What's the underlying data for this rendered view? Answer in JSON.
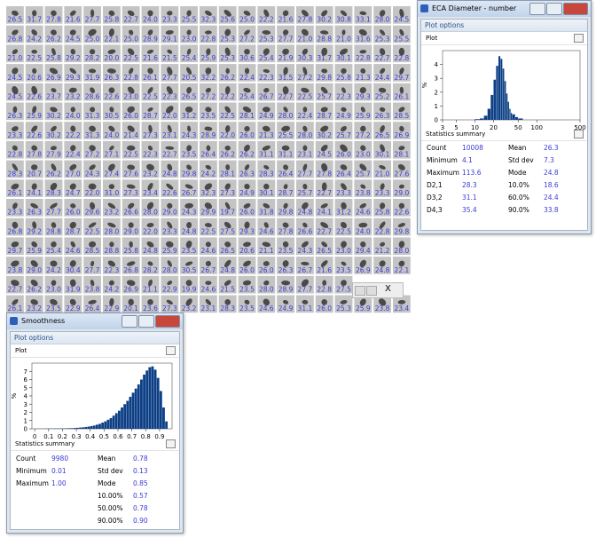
{
  "grid": {
    "rows": [
      [
        "26.5",
        "31.7",
        "27.8",
        "21.6",
        "27.7",
        "25.8",
        "22.7",
        "24.0",
        "23.3",
        "25.5",
        "32.3",
        "25.6",
        "25.0",
        "22.2",
        "21.6",
        "27.8",
        "30.2",
        "30.8",
        "33.1",
        "28.0",
        "24.5"
      ],
      [
        "26.8",
        "24.2",
        "26.2",
        "24.5",
        "25.0",
        "22.1",
        "25.0",
        "28.9",
        "29.1",
        "23.0",
        "22.8",
        "25.3",
        "27.2",
        "25.3",
        "27.7",
        "21.0",
        "28.8",
        "21.0",
        "31.6",
        "25.3",
        "25.5"
      ],
      [
        "21.0",
        "22.5",
        "25.8",
        "29.2",
        "28.2",
        "20.0",
        "22.5",
        "21.6",
        "21.5",
        "25.4",
        "25.9",
        "25.3",
        "30.6",
        "25.4",
        "21.9",
        "30.3",
        "31.7",
        "30.1",
        "22.8",
        "22.7",
        "22.8"
      ],
      [
        "24.5",
        "20.6",
        "26.9",
        "29.3",
        "31.9",
        "26.3",
        "22.8",
        "26.1",
        "27.7",
        "20.5",
        "32.2",
        "26.2",
        "22.4",
        "22.3",
        "31.5",
        "27.2",
        "29.8",
        "25.8",
        "21.3",
        "24.4",
        "29.7"
      ],
      [
        "24.5",
        "22.6",
        "23.7",
        "23.2",
        "28.6",
        "22.6",
        "23.0",
        "22.5",
        "22.3",
        "26.5",
        "27.2",
        "22.2",
        "25.4",
        "26.7",
        "22.7",
        "22.5",
        "25.7",
        "22.3",
        "29.3",
        "25.2",
        "26.1"
      ],
      [
        "26.3",
        "25.9",
        "30.2",
        "24.0",
        "31.3",
        "30.5",
        "26.0",
        "28.7",
        "22.0",
        "31.2",
        "23.5",
        "22.5",
        "28.1",
        "24.9",
        "28.0",
        "22.4",
        "28.7",
        "24.9",
        "25.9",
        "26.3",
        "28.5"
      ],
      [
        "23.3",
        "22.6",
        "30.2",
        "22.2",
        "31.3",
        "24.0",
        "21.4",
        "27.3",
        "23.1",
        "24.3",
        "28.9",
        "22.0",
        "26.0",
        "21.3",
        "25.5",
        "28.0",
        "30.2",
        "25.7",
        "27.2",
        "26.5",
        "26.9"
      ],
      [
        "22.8",
        "27.8",
        "27.9",
        "22.4",
        "27.2",
        "27.1",
        "22.5",
        "22.3",
        "22.7",
        "23.5",
        "26.4",
        "26.2",
        "26.2",
        "31.1",
        "31.1",
        "23.1",
        "24.5",
        "26.0",
        "23.0",
        "30.1",
        "28.1"
      ],
      [
        "28.3",
        "20.7",
        "26.2",
        "27.0",
        "24.3",
        "27.4",
        "27.6",
        "23.2",
        "24.8",
        "29.8",
        "24.2",
        "28.1",
        "26.3",
        "28.3",
        "26.4",
        "27.7",
        "27.8",
        "26.4",
        "25.7",
        "21.0",
        "27.6"
      ],
      [
        "26.1",
        "24.1",
        "28.3",
        "24.7",
        "22.0",
        "31.0",
        "27.3",
        "23.4",
        "22.6",
        "26.7",
        "32.3",
        "27.3",
        "24.9",
        "30.1",
        "28.7",
        "25.7",
        "22.7",
        "23.3",
        "23.8",
        "23.3",
        "29.0"
      ],
      [
        "23.3",
        "26.3",
        "27.7",
        "26.0",
        "29.6",
        "23.2",
        "26.6",
        "28.0",
        "29.0",
        "24.3",
        "29.9",
        "19.7",
        "26.0",
        "31.8",
        "29.8",
        "24.8",
        "24.1",
        "31.2",
        "24.6",
        "25.8",
        "22.6"
      ],
      [
        "26.8",
        "29.2",
        "28.8",
        "28.7",
        "22.5",
        "28.0",
        "29.0",
        "22.0",
        "23.3",
        "24.8",
        "22.5",
        "27.5",
        "29.3",
        "24.6",
        "27.8",
        "26.6",
        "22.7",
        "22.5",
        "24.0",
        "22.8",
        "29.8"
      ],
      [
        "29.7",
        "25.9",
        "25.4",
        "24.6",
        "28.5",
        "28.8",
        "25.8",
        "24.8",
        "25.9",
        "23.5",
        "24.6",
        "26.5",
        "20.6",
        "21.1",
        "23.5",
        "24.3",
        "26.5",
        "23.0",
        "29.4",
        "21.2",
        "28.0"
      ],
      [
        "23.8",
        "29.0",
        "24.2",
        "30.4",
        "27.7",
        "22.3",
        "26.8",
        "28.2",
        "28.0",
        "30.5",
        "26.7",
        "24.8",
        "26.0",
        "26.0",
        "26.3",
        "26.7",
        "21.6",
        "23.5",
        "26.9",
        "24.8",
        "22.1"
      ],
      [
        "22.7",
        "26.2",
        "23.0",
        "31.9",
        "23.8",
        "24.2",
        "26.9",
        "21.1",
        "22.9",
        "19.9",
        "24.6",
        "21.5",
        "23.5",
        "28.0",
        "28.9",
        "27.7",
        "22.8",
        "27.5"
      ],
      [
        "26.1",
        "23.2",
        "23.5",
        "22.9",
        "26.4",
        "22.9",
        "20.1",
        "23.6",
        "27.3",
        "23.2",
        "23.1",
        "28.3",
        "23.5",
        "24.6",
        "24.9",
        "31.1",
        "26.0",
        "25.3",
        "25.9",
        "23.8",
        "23.4"
      ]
    ]
  },
  "nav": {
    "close": "X"
  },
  "eca_window": {
    "title": "ECA Diameter - number",
    "plot_options": "Plot options",
    "plot_label": "Plot",
    "stats_label": "Statistics summary",
    "chart": {
      "type": "histogram",
      "y_label": "%",
      "log_x": true,
      "color": "#0d3f86",
      "bins": [
        10,
        12,
        14,
        16,
        18,
        20,
        22,
        24,
        26,
        28,
        30,
        32,
        34,
        36,
        38,
        40,
        45,
        50,
        60
      ],
      "values": [
        0.05,
        0.1,
        0.3,
        0.8,
        1.8,
        2.9,
        3.9,
        4.6,
        4.4,
        3.7,
        2.8,
        1.9,
        1.3,
        0.8,
        0.5,
        0.4,
        0.2,
        0.1
      ],
      "xlim": [
        3,
        500
      ],
      "xticks": [
        3,
        5,
        10,
        20,
        50,
        100,
        500
      ],
      "ylim": [
        0,
        5
      ],
      "yticks": [
        0,
        1,
        2,
        3,
        4
      ]
    },
    "stats": {
      "left": [
        [
          "Count",
          "10008"
        ],
        [
          "Minimum",
          "4.1"
        ],
        [
          "Maximum",
          "113.6"
        ],
        [
          "D2,1",
          "28.3"
        ],
        [
          "D3,2",
          "31.1"
        ],
        [
          "D4,3",
          "35.4"
        ]
      ],
      "right": [
        [
          "Mean",
          "26.3"
        ],
        [
          "Std dev",
          "7.3"
        ],
        [
          "Mode",
          "24.8"
        ],
        [
          "10.0%",
          "18.6"
        ],
        [
          "60.0%",
          "24.4"
        ],
        [
          "90.0%",
          "33.8"
        ]
      ]
    }
  },
  "smooth_window": {
    "title": "Smoothness",
    "plot_options": "Plot options",
    "plot_label": "Plot",
    "stats_label": "Statistics summary",
    "chart": {
      "type": "histogram",
      "y_label": "%",
      "log_x": false,
      "color": "#0d3f86",
      "bins": [
        0,
        0.02,
        0.04,
        0.06,
        0.08,
        0.1,
        0.12,
        0.14,
        0.16,
        0.18,
        0.2,
        0.22,
        0.24,
        0.26,
        0.28,
        0.3,
        0.32,
        0.34,
        0.36,
        0.38,
        0.4,
        0.42,
        0.44,
        0.46,
        0.48,
        0.5,
        0.52,
        0.54,
        0.56,
        0.58,
        0.6,
        0.62,
        0.64,
        0.66,
        0.68,
        0.7,
        0.72,
        0.74,
        0.76,
        0.78,
        0.8,
        0.82,
        0.84,
        0.86,
        0.88,
        0.9,
        0.92,
        0.94,
        0.96
      ],
      "values": [
        0.02,
        0.02,
        0.02,
        0.02,
        0.03,
        0.03,
        0.03,
        0.04,
        0.04,
        0.05,
        0.05,
        0.06,
        0.07,
        0.08,
        0.1,
        0.12,
        0.15,
        0.18,
        0.22,
        0.27,
        0.33,
        0.4,
        0.5,
        0.6,
        0.75,
        0.9,
        1.1,
        1.3,
        1.6,
        1.9,
        2.2,
        2.6,
        3.0,
        3.4,
        3.9,
        4.4,
        4.9,
        5.4,
        6.0,
        6.6,
        7.1,
        7.5,
        7.6,
        7.2,
        6.2,
        4.6,
        2.6,
        0.9
      ],
      "xlim": [
        -0.02,
        0.99
      ],
      "xticks": [
        0,
        0.1,
        0.2,
        0.3,
        0.4,
        0.5,
        0.6,
        0.7,
        0.8,
        0.9
      ],
      "ylim": [
        0,
        8
      ],
      "yticks": [
        0,
        1,
        2,
        3,
        4,
        5,
        6,
        7
      ]
    },
    "stats": {
      "left": [
        [
          "Count",
          "9980"
        ],
        [
          "Minimum",
          "0.01"
        ],
        [
          "Maximum",
          "1.00"
        ]
      ],
      "right": [
        [
          "Mean",
          "0.78"
        ],
        [
          "Std dev",
          "0.13"
        ],
        [
          "Mode",
          "0.85"
        ],
        [
          "10.00%",
          "0.57"
        ],
        [
          "50.00%",
          "0.78"
        ],
        [
          "90.00%",
          "0.90"
        ]
      ]
    }
  }
}
